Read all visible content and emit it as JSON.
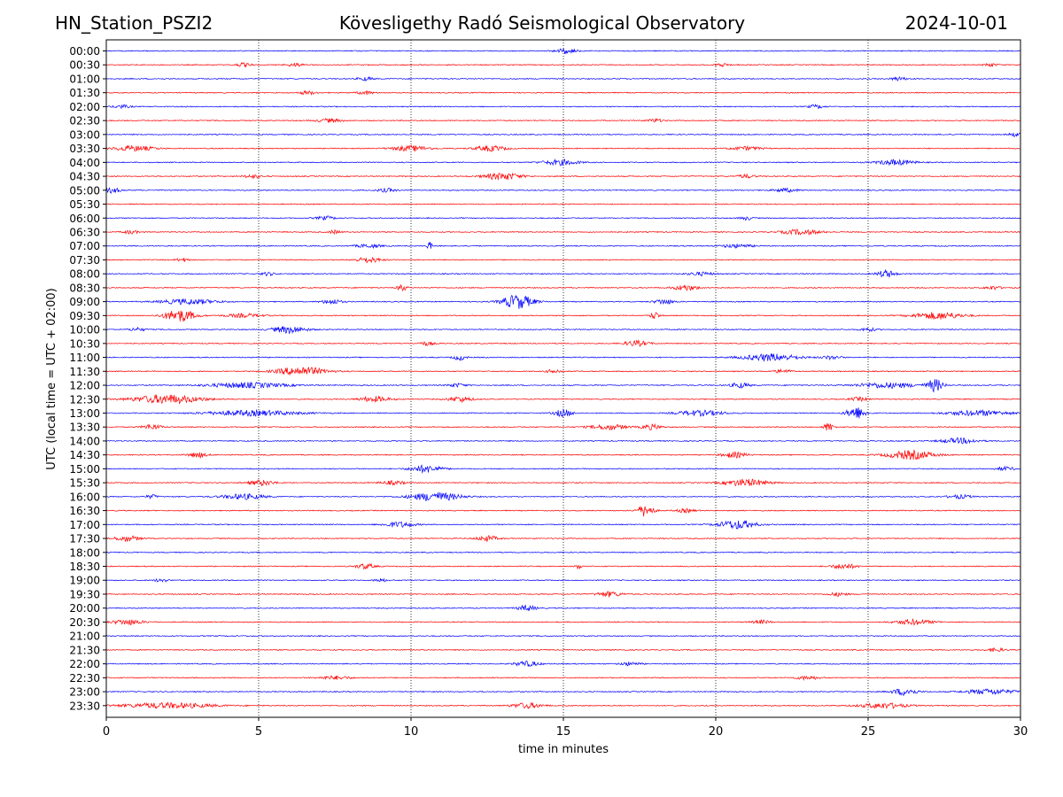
{
  "header": {
    "station": "HN_Station_PSZI2",
    "title": "Kövesligethy Radó Seismological Observatory",
    "date": "2024-10-01"
  },
  "chart_data": {
    "type": "line",
    "title": "Kövesligethy Radó Seismological Observatory",
    "xlabel": "time in minutes",
    "ylabel": "UTC (local time = UTC + 02:00)",
    "xlim": [
      0,
      30
    ],
    "x_ticks": [
      0,
      5,
      10,
      15,
      20,
      25,
      30
    ],
    "grid": "vertical dotted lines at x = 5, 10, 15, 20, 25",
    "trace_colors": [
      "#0000ff",
      "#ff0000"
    ],
    "traces": [
      {
        "label": "00:00",
        "events": [
          {
            "t": 15.1,
            "amp": 3,
            "dur": 0.6
          }
        ]
      },
      {
        "label": "00:30",
        "events": [
          {
            "t": 4.5,
            "amp": 2,
            "dur": 0.5
          },
          {
            "t": 6.2,
            "amp": 2,
            "dur": 0.5
          },
          {
            "t": 20.2,
            "amp": 2,
            "dur": 0.4
          },
          {
            "t": 29.0,
            "amp": 2,
            "dur": 0.4
          }
        ]
      },
      {
        "label": "01:00",
        "events": [
          {
            "t": 8.5,
            "amp": 2,
            "dur": 0.5
          },
          {
            "t": 26.0,
            "amp": 2,
            "dur": 0.5
          }
        ]
      },
      {
        "label": "01:30",
        "events": [
          {
            "t": 6.6,
            "amp": 2,
            "dur": 0.5
          },
          {
            "t": 8.5,
            "amp": 2,
            "dur": 0.5
          }
        ]
      },
      {
        "label": "02:00",
        "events": [
          {
            "t": 0.5,
            "amp": 2,
            "dur": 0.5
          },
          {
            "t": 23.3,
            "amp": 2,
            "dur": 0.5
          }
        ]
      },
      {
        "label": "02:30",
        "events": [
          {
            "t": 7.3,
            "amp": 2,
            "dur": 0.8
          },
          {
            "t": 18.0,
            "amp": 2,
            "dur": 0.5
          }
        ]
      },
      {
        "label": "03:00",
        "events": [
          {
            "t": 29.8,
            "amp": 2,
            "dur": 0.4
          }
        ]
      },
      {
        "label": "03:30",
        "events": [
          {
            "t": 0.9,
            "amp": 3,
            "dur": 1.3
          },
          {
            "t": 10.0,
            "amp": 3,
            "dur": 1.2
          },
          {
            "t": 12.6,
            "amp": 3,
            "dur": 1.0
          },
          {
            "t": 21.0,
            "amp": 2,
            "dur": 1.0
          }
        ]
      },
      {
        "label": "04:00",
        "events": [
          {
            "t": 14.9,
            "amp": 3,
            "dur": 1.2
          },
          {
            "t": 25.9,
            "amp": 3,
            "dur": 1.2
          }
        ]
      },
      {
        "label": "04:30",
        "events": [
          {
            "t": 4.8,
            "amp": 2,
            "dur": 0.6
          },
          {
            "t": 13.0,
            "amp": 4,
            "dur": 1.2
          },
          {
            "t": 21.0,
            "amp": 2,
            "dur": 0.6
          }
        ]
      },
      {
        "label": "05:00",
        "events": [
          {
            "t": 0.2,
            "amp": 3,
            "dur": 0.5
          },
          {
            "t": 9.2,
            "amp": 2,
            "dur": 0.6
          },
          {
            "t": 22.3,
            "amp": 2,
            "dur": 0.8
          }
        ]
      },
      {
        "label": "05:30",
        "events": []
      },
      {
        "label": "06:00",
        "events": [
          {
            "t": 7.2,
            "amp": 2,
            "dur": 0.6
          },
          {
            "t": 21.0,
            "amp": 2,
            "dur": 0.4
          }
        ]
      },
      {
        "label": "06:30",
        "events": [
          {
            "t": 0.8,
            "amp": 2,
            "dur": 0.5
          },
          {
            "t": 7.5,
            "amp": 2,
            "dur": 0.4
          },
          {
            "t": 22.8,
            "amp": 3,
            "dur": 1.2
          }
        ]
      },
      {
        "label": "07:00",
        "events": [
          {
            "t": 8.6,
            "amp": 2,
            "dur": 0.8
          },
          {
            "t": 10.6,
            "amp": 5,
            "dur": 0.15
          },
          {
            "t": 20.7,
            "amp": 2,
            "dur": 1.0
          }
        ]
      },
      {
        "label": "07:30",
        "events": [
          {
            "t": 2.5,
            "amp": 2,
            "dur": 0.4
          },
          {
            "t": 8.6,
            "amp": 3,
            "dur": 0.8
          }
        ]
      },
      {
        "label": "08:00",
        "events": [
          {
            "t": 5.3,
            "amp": 2,
            "dur": 0.4
          },
          {
            "t": 19.5,
            "amp": 2,
            "dur": 0.8
          },
          {
            "t": 25.6,
            "amp": 4,
            "dur": 0.6
          }
        ]
      },
      {
        "label": "08:30",
        "events": [
          {
            "t": 9.7,
            "amp": 4,
            "dur": 0.3
          },
          {
            "t": 19.0,
            "amp": 3,
            "dur": 0.8
          },
          {
            "t": 29.1,
            "amp": 2,
            "dur": 0.5
          }
        ]
      },
      {
        "label": "09:00",
        "events": [
          {
            "t": 2.7,
            "amp": 3,
            "dur": 1.8
          },
          {
            "t": 7.4,
            "amp": 3,
            "dur": 0.6
          },
          {
            "t": 13.5,
            "amp": 8,
            "dur": 1.0
          },
          {
            "t": 18.3,
            "amp": 3,
            "dur": 0.6
          }
        ]
      },
      {
        "label": "09:30",
        "events": [
          {
            "t": 2.4,
            "amp": 7,
            "dur": 1.0
          },
          {
            "t": 4.5,
            "amp": 2,
            "dur": 1.2
          },
          {
            "t": 18.0,
            "amp": 4,
            "dur": 0.3
          },
          {
            "t": 27.3,
            "amp": 4,
            "dur": 1.6
          }
        ]
      },
      {
        "label": "10:00",
        "events": [
          {
            "t": 1.0,
            "amp": 2,
            "dur": 0.5
          },
          {
            "t": 6.0,
            "amp": 4,
            "dur": 1.1
          },
          {
            "t": 25.0,
            "amp": 2,
            "dur": 0.5
          }
        ]
      },
      {
        "label": "10:30",
        "events": [
          {
            "t": 10.5,
            "amp": 2,
            "dur": 0.5
          },
          {
            "t": 17.4,
            "amp": 3,
            "dur": 0.8
          }
        ]
      },
      {
        "label": "11:00",
        "events": [
          {
            "t": 11.6,
            "amp": 3,
            "dur": 0.4
          },
          {
            "t": 21.8,
            "amp": 4,
            "dur": 1.8
          },
          {
            "t": 23.8,
            "amp": 2,
            "dur": 0.6
          }
        ]
      },
      {
        "label": "11:30",
        "events": [
          {
            "t": 6.4,
            "amp": 5,
            "dur": 1.6
          },
          {
            "t": 14.7,
            "amp": 2,
            "dur": 0.5
          },
          {
            "t": 22.2,
            "amp": 2,
            "dur": 0.6
          }
        ]
      },
      {
        "label": "12:00",
        "events": [
          {
            "t": 4.6,
            "amp": 3,
            "dur": 2.5
          },
          {
            "t": 11.5,
            "amp": 2,
            "dur": 0.6
          },
          {
            "t": 20.8,
            "amp": 3,
            "dur": 0.6
          },
          {
            "t": 25.6,
            "amp": 3,
            "dur": 2.0
          },
          {
            "t": 27.2,
            "amp": 7,
            "dur": 0.5
          }
        ]
      },
      {
        "label": "12:30",
        "events": [
          {
            "t": 2.0,
            "amp": 5,
            "dur": 2.2
          },
          {
            "t": 8.8,
            "amp": 3,
            "dur": 1.0
          },
          {
            "t": 11.6,
            "amp": 3,
            "dur": 0.8
          },
          {
            "t": 24.7,
            "amp": 2,
            "dur": 0.6
          }
        ]
      },
      {
        "label": "13:00",
        "events": [
          {
            "t": 4.8,
            "amp": 3,
            "dur": 3.0
          },
          {
            "t": 15.0,
            "amp": 4,
            "dur": 0.6
          },
          {
            "t": 19.5,
            "amp": 3,
            "dur": 1.5
          },
          {
            "t": 24.6,
            "amp": 7,
            "dur": 0.6
          },
          {
            "t": 28.6,
            "amp": 3,
            "dur": 2.0
          }
        ]
      },
      {
        "label": "13:30",
        "events": [
          {
            "t": 1.5,
            "amp": 3,
            "dur": 0.6
          },
          {
            "t": 16.5,
            "amp": 3,
            "dur": 1.2
          },
          {
            "t": 17.9,
            "amp": 3,
            "dur": 0.6
          },
          {
            "t": 23.7,
            "amp": 5,
            "dur": 0.3
          }
        ]
      },
      {
        "label": "14:00",
        "events": [
          {
            "t": 28.0,
            "amp": 3,
            "dur": 1.2
          }
        ]
      },
      {
        "label": "14:30",
        "events": [
          {
            "t": 3.0,
            "amp": 3,
            "dur": 0.6
          },
          {
            "t": 20.6,
            "amp": 3,
            "dur": 0.8
          },
          {
            "t": 26.4,
            "amp": 5,
            "dur": 1.5
          }
        ]
      },
      {
        "label": "15:00",
        "events": [
          {
            "t": 10.5,
            "amp": 4,
            "dur": 1.0
          },
          {
            "t": 29.5,
            "amp": 2,
            "dur": 0.6
          }
        ]
      },
      {
        "label": "15:30",
        "events": [
          {
            "t": 5.1,
            "amp": 3,
            "dur": 0.8
          },
          {
            "t": 9.4,
            "amp": 2,
            "dur": 0.8
          },
          {
            "t": 21.0,
            "amp": 4,
            "dur": 1.4
          }
        ]
      },
      {
        "label": "16:00",
        "events": [
          {
            "t": 1.5,
            "amp": 2,
            "dur": 0.4
          },
          {
            "t": 4.5,
            "amp": 3,
            "dur": 1.4
          },
          {
            "t": 10.8,
            "amp": 5,
            "dur": 1.6
          },
          {
            "t": 28.0,
            "amp": 2,
            "dur": 0.8
          }
        ]
      },
      {
        "label": "16:30",
        "events": [
          {
            "t": 17.7,
            "amp": 7,
            "dur": 0.5
          },
          {
            "t": 19.0,
            "amp": 2,
            "dur": 0.6
          }
        ]
      },
      {
        "label": "17:00",
        "events": [
          {
            "t": 9.6,
            "amp": 3,
            "dur": 1.0
          },
          {
            "t": 20.7,
            "amp": 5,
            "dur": 1.2
          }
        ]
      },
      {
        "label": "17:30",
        "events": [
          {
            "t": 0.7,
            "amp": 3,
            "dur": 0.8
          },
          {
            "t": 12.5,
            "amp": 3,
            "dur": 0.7
          }
        ]
      },
      {
        "label": "18:00",
        "events": []
      },
      {
        "label": "18:30",
        "events": [
          {
            "t": 8.5,
            "amp": 3,
            "dur": 0.6
          },
          {
            "t": 15.5,
            "amp": 3,
            "dur": 0.2
          },
          {
            "t": 24.2,
            "amp": 3,
            "dur": 0.8
          }
        ]
      },
      {
        "label": "19:00",
        "events": [
          {
            "t": 1.8,
            "amp": 2,
            "dur": 0.4
          },
          {
            "t": 9.0,
            "amp": 2,
            "dur": 0.4
          }
        ]
      },
      {
        "label": "19:30",
        "events": [
          {
            "t": 16.5,
            "amp": 3,
            "dur": 0.8
          },
          {
            "t": 24.0,
            "amp": 2,
            "dur": 0.6
          }
        ]
      },
      {
        "label": "20:00",
        "events": [
          {
            "t": 13.8,
            "amp": 3,
            "dur": 0.6
          }
        ]
      },
      {
        "label": "20:30",
        "events": [
          {
            "t": 0.7,
            "amp": 3,
            "dur": 1.0
          },
          {
            "t": 21.5,
            "amp": 2,
            "dur": 0.6
          },
          {
            "t": 26.5,
            "amp": 3,
            "dur": 1.2
          }
        ]
      },
      {
        "label": "21:00",
        "events": []
      },
      {
        "label": "21:30",
        "events": [
          {
            "t": 29.2,
            "amp": 2,
            "dur": 0.6
          }
        ]
      },
      {
        "label": "22:00",
        "events": [
          {
            "t": 13.8,
            "amp": 3,
            "dur": 0.8
          },
          {
            "t": 17.2,
            "amp": 2,
            "dur": 0.6
          }
        ]
      },
      {
        "label": "22:30",
        "events": [
          {
            "t": 7.5,
            "amp": 2,
            "dur": 1.0
          },
          {
            "t": 23.0,
            "amp": 2,
            "dur": 0.8
          }
        ]
      },
      {
        "label": "23:00",
        "events": [
          {
            "t": 26.2,
            "amp": 4,
            "dur": 0.8
          },
          {
            "t": 29.0,
            "amp": 3,
            "dur": 1.6
          }
        ]
      },
      {
        "label": "23:30",
        "events": [
          {
            "t": 2.0,
            "amp": 3,
            "dur": 3.0
          },
          {
            "t": 13.8,
            "amp": 3,
            "dur": 1.0
          },
          {
            "t": 25.5,
            "amp": 3,
            "dur": 1.5
          }
        ]
      }
    ]
  }
}
